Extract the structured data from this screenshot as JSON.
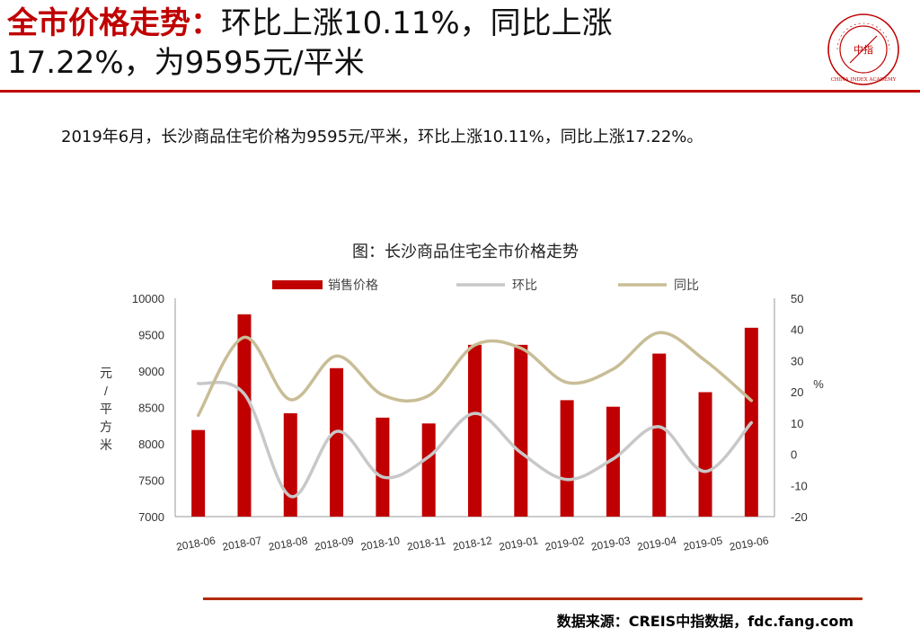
{
  "header": {
    "title_red": "全市价格走势：",
    "title_line1_rest": "环比上涨10.11%，同比上涨",
    "title_line2": "17.22%，为9595元/平米"
  },
  "seal": {
    "center_text": "中指",
    "ring_text": "CHINA INDEX ACADEMY",
    "color": "#c00000"
  },
  "summary": "2019年6月，长沙商品住宅价格为9595元/平米，环比上涨10.11%，同比上涨17.22%。",
  "chart_data": {
    "type": "bar",
    "title": "图：长沙商品住宅全市价格走势",
    "categories": [
      "2018-06",
      "2018-07",
      "2018-08",
      "2018-09",
      "2018-10",
      "2018-11",
      "2018-12",
      "2019-01",
      "2019-02",
      "2019-03",
      "2019-04",
      "2019-05",
      "2019-06"
    ],
    "series": [
      {
        "name": "销售价格",
        "kind": "bar",
        "axis": "left",
        "color": "#c00000",
        "values": [
          8190,
          9780,
          8420,
          9040,
          8360,
          8280,
          9360,
          9360,
          8600,
          8510,
          9240,
          8710,
          9595
        ]
      },
      {
        "name": "环比",
        "kind": "line",
        "axis": "right",
        "color": "#c8c8c8",
        "values": [
          22.7,
          19.3,
          -13.5,
          7.3,
          -7.3,
          -0.8,
          13.1,
          0.5,
          -8.1,
          -1.5,
          8.8,
          -5.5,
          10.11
        ]
      },
      {
        "name": "同比",
        "kind": "line",
        "axis": "right",
        "color": "#c8bd96",
        "values": [
          12.5,
          37.5,
          17.5,
          31.5,
          19.0,
          18.8,
          35.0,
          34.0,
          23.0,
          27.3,
          39.0,
          30.0,
          17.22
        ]
      }
    ],
    "ylabel_left": "元/平方米",
    "ylabel_right": "%",
    "ylim_left": [
      7000,
      10000
    ],
    "yticks_left": [
      7000,
      7500,
      8000,
      8500,
      9000,
      9500,
      10000
    ],
    "ylim_right": [
      -20,
      50
    ],
    "yticks_right": [
      -20,
      -10,
      0,
      10,
      20,
      30,
      40,
      50
    ],
    "legend_position": "top"
  },
  "footer": {
    "source": "数据来源：CREIS中指数据，fdc.fang.com"
  }
}
